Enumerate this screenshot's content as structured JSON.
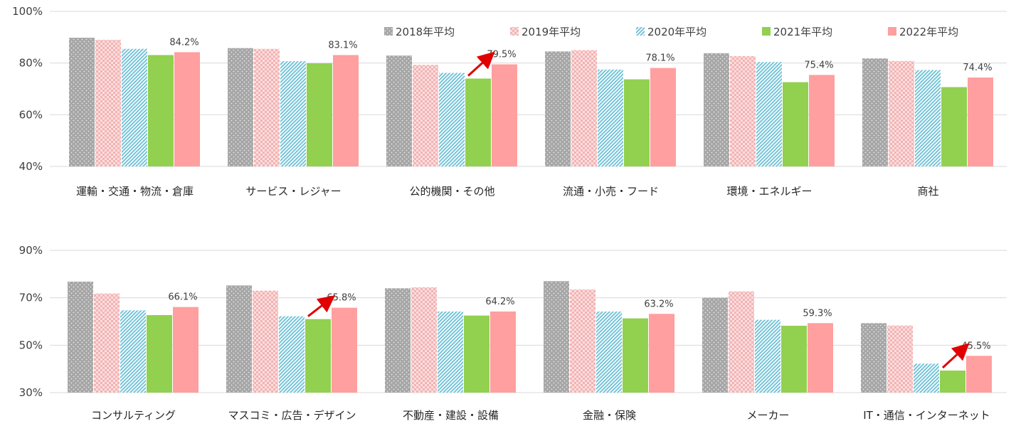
{
  "legend": [
    {
      "label": "2018年平均",
      "color": "#a6a6a6",
      "pattern": "dots"
    },
    {
      "label": "2019年平均",
      "color": "#f8c9c9",
      "pattern": "checker"
    },
    {
      "label": "2020年平均",
      "color": "#7fcfe0",
      "pattern": "diagonal"
    },
    {
      "label": "2021年平均",
      "color": "#92d050",
      "pattern": "solid"
    },
    {
      "label": "2022年平均",
      "color": "#ff9f9f",
      "pattern": "solid"
    }
  ],
  "chart_data": [
    {
      "type": "bar",
      "ylim": [
        40,
        100
      ],
      "yticks": [
        40,
        60,
        80,
        100
      ],
      "ytick_labels": [
        "40%",
        "60%",
        "80%",
        "100%"
      ],
      "categories": [
        "運輸・交通・物流・倉庫",
        "サービス・レジャー",
        "公的機関・その他",
        "流通・小売・フード",
        "環境・エネルギー",
        "商社"
      ],
      "series": [
        {
          "name": "2018年平均",
          "values": [
            89.8,
            85.8,
            82.9,
            84.5,
            83.8,
            81.8
          ]
        },
        {
          "name": "2019年平均",
          "values": [
            89.0,
            85.5,
            79.3,
            85.0,
            82.7,
            80.8
          ]
        },
        {
          "name": "2020年平均",
          "values": [
            85.5,
            80.7,
            76.2,
            77.5,
            80.4,
            77.3
          ]
        },
        {
          "name": "2021年平均",
          "values": [
            83.1,
            79.9,
            74.0,
            73.7,
            72.6,
            70.7
          ]
        },
        {
          "name": "2022年平均",
          "values": [
            84.2,
            83.1,
            79.5,
            78.1,
            75.4,
            74.4
          ]
        }
      ],
      "data_labels": [
        "84.2%",
        "83.1%",
        "79.5%",
        "78.1%",
        "75.4%",
        "74.4%"
      ],
      "arrows": [
        2
      ]
    },
    {
      "type": "bar",
      "ylim": [
        30,
        90
      ],
      "yticks": [
        30,
        50,
        70,
        90
      ],
      "ytick_labels": [
        "30%",
        "50%",
        "70%",
        "90%"
      ],
      "categories": [
        "コンサルティング",
        "マスコミ・広告・デザイン",
        "不動産・建設・設備",
        "金融・保険",
        "メーカー",
        "IT・通信・インターネット"
      ],
      "series": [
        {
          "name": "2018年平均",
          "values": [
            76.8,
            75.2,
            74.0,
            77.0,
            70.0,
            59.3
          ]
        },
        {
          "name": "2019年平均",
          "values": [
            71.8,
            73.0,
            74.4,
            73.5,
            72.7,
            58.3
          ]
        },
        {
          "name": "2020年平均",
          "values": [
            64.7,
            62.2,
            64.2,
            64.2,
            60.7,
            42.2
          ]
        },
        {
          "name": "2021年平均",
          "values": [
            62.7,
            61.0,
            62.5,
            61.3,
            58.2,
            39.3
          ]
        },
        {
          "name": "2022年平均",
          "values": [
            66.1,
            65.8,
            64.2,
            63.2,
            59.3,
            45.5
          ]
        }
      ],
      "data_labels": [
        "66.1%",
        "65.8%",
        "64.2%",
        "63.2%",
        "59.3%",
        "45.5%"
      ],
      "arrows": [
        1,
        5
      ]
    }
  ]
}
